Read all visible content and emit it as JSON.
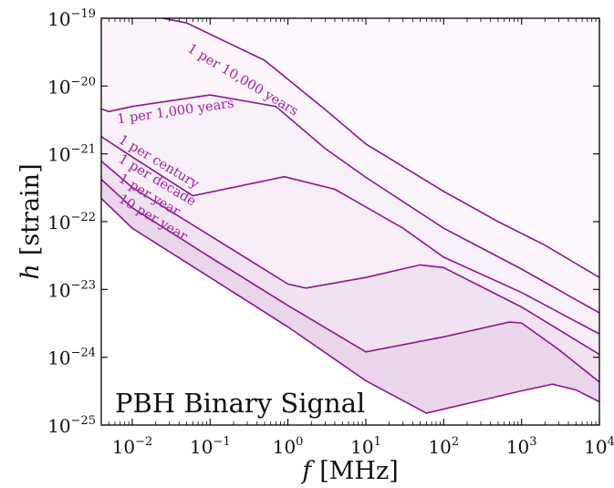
{
  "chart_data": {
    "type": "area",
    "title": "",
    "annotation": "PBH Binary Signal",
    "xlabel_var": "f",
    "xlabel_unit": "[MHz]",
    "ylabel_var": "h",
    "ylabel_unit": "[strain]",
    "xscale": "log",
    "yscale": "log",
    "xlim": [
      0.004,
      10000
    ],
    "ylim": [
      1e-25,
      1e-19
    ],
    "grid": false,
    "legend": "none",
    "x_ticks": [
      {
        "v": 0.01,
        "base": "10",
        "exp": "−2"
      },
      {
        "v": 0.1,
        "base": "10",
        "exp": "−1"
      },
      {
        "v": 1,
        "base": "10",
        "exp": "0"
      },
      {
        "v": 10,
        "base": "10",
        "exp": "1"
      },
      {
        "v": 100,
        "base": "10",
        "exp": "2"
      },
      {
        "v": 1000,
        "base": "10",
        "exp": "3"
      },
      {
        "v": 10000,
        "base": "10",
        "exp": "4"
      }
    ],
    "y_ticks": [
      {
        "v": 1e-25,
        "base": "10",
        "exp": "−25"
      },
      {
        "v": 1e-24,
        "base": "10",
        "exp": "−24"
      },
      {
        "v": 1e-23,
        "base": "10",
        "exp": "−23"
      },
      {
        "v": 1e-22,
        "base": "10",
        "exp": "−22"
      },
      {
        "v": 1e-21,
        "base": "10",
        "exp": "−21"
      },
      {
        "v": 1e-20,
        "base": "10",
        "exp": "−20"
      },
      {
        "v": 1e-19,
        "base": "10",
        "exp": "−19"
      }
    ],
    "series": [
      {
        "name": "10 per year",
        "label_x": 0.0065,
        "label_y": 2e-22,
        "label_angle": 31,
        "points": [
          [
            0.004,
            2.2e-22
          ],
          [
            0.01,
            8e-23
          ],
          [
            0.1,
            1.5e-23
          ],
          [
            1,
            2.8e-24
          ],
          [
            10,
            4.5e-25
          ],
          [
            60,
            1.5e-25
          ],
          [
            1000,
            3.2e-25
          ],
          [
            2500,
            4e-25
          ],
          [
            5000,
            3.3e-25
          ],
          [
            10000,
            2.2e-25
          ]
        ]
      },
      {
        "name": "1 per year",
        "label_x": 0.0065,
        "label_y": 4e-22,
        "label_angle": 31,
        "points": [
          [
            0.004,
            4.2e-22
          ],
          [
            0.01,
            1.6e-22
          ],
          [
            0.1,
            3e-23
          ],
          [
            1,
            5.8e-24
          ],
          [
            10,
            1.2e-24
          ],
          [
            100,
            2e-24
          ],
          [
            700,
            3.3e-24
          ],
          [
            1000,
            3.2e-24
          ],
          [
            3000,
            1.3e-24
          ],
          [
            10000,
            4.3e-25
          ]
        ]
      },
      {
        "name": "1 per decade",
        "label_x": 0.0065,
        "label_y": 7.8e-22,
        "label_angle": 31,
        "points": [
          [
            0.004,
            7.8e-22
          ],
          [
            0.01,
            3.2e-22
          ],
          [
            0.1,
            6.2e-23
          ],
          [
            1,
            1.2e-23
          ],
          [
            1.7,
            1.05e-23
          ],
          [
            10,
            1.5e-23
          ],
          [
            50,
            2.3e-23
          ],
          [
            100,
            2.1e-23
          ],
          [
            1000,
            5.5e-24
          ],
          [
            10000,
            1.1e-24
          ]
        ]
      },
      {
        "name": "1 per century",
        "label_x": 0.0065,
        "label_y": 1.5e-21,
        "label_angle": 31,
        "points": [
          [
            0.004,
            1.8e-21
          ],
          [
            0.01,
            9e-22
          ],
          [
            0.06,
            2.4e-22
          ],
          [
            0.9,
            4.6e-22
          ],
          [
            4,
            3e-22
          ],
          [
            30,
            8e-23
          ],
          [
            100,
            3e-23
          ],
          [
            1000,
            9e-24
          ],
          [
            10000,
            2.2e-24
          ]
        ]
      },
      {
        "name": "1 per 1,000 years",
        "label_x": 0.0065,
        "label_y": 2.8e-21,
        "label_angle": -8,
        "points": [
          [
            0.004,
            4.6e-21
          ],
          [
            0.005,
            4.2e-21
          ],
          [
            0.01,
            5e-21
          ],
          [
            0.1,
            7.4e-21
          ],
          [
            0.7,
            5e-21
          ],
          [
            3,
            1.2e-21
          ],
          [
            10,
            4.5e-22
          ],
          [
            100,
            8e-23
          ],
          [
            1000,
            2e-23
          ],
          [
            10000,
            4.5e-24
          ]
        ]
      },
      {
        "name": "1 per 10,000 years",
        "label_x": 0.05,
        "label_y": 3.3e-20,
        "label_angle": 31,
        "points": [
          [
            0.004,
            1.8e-19
          ],
          [
            0.02,
            1.05e-19
          ],
          [
            0.05,
            8.5e-20
          ],
          [
            0.5,
            2.4e-20
          ],
          [
            3,
            4.5e-21
          ],
          [
            10,
            1.4e-21
          ],
          [
            100,
            2.8e-22
          ],
          [
            500,
            1e-22
          ],
          [
            2000,
            4.5e-23
          ],
          [
            10000,
            1.5e-23
          ]
        ]
      }
    ]
  }
}
